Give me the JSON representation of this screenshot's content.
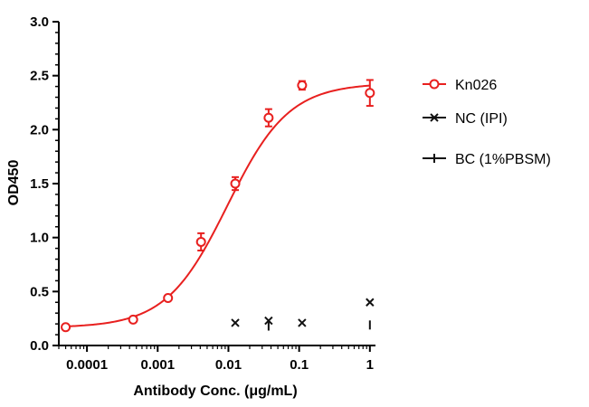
{
  "chart_data": {
    "type": "scatter",
    "xlabel": "Antibody Conc. (μg/mL)",
    "ylabel": "OD450",
    "x_scale": "log",
    "xlim": [
      4e-05,
      1.2
    ],
    "ylim": [
      0,
      3.0
    ],
    "x_ticks": [
      {
        "value": 0.0001,
        "label": "0.0001"
      },
      {
        "value": 0.001,
        "label": "0.001"
      },
      {
        "value": 0.01,
        "label": "0.01"
      },
      {
        "value": 0.1,
        "label": "0.1"
      },
      {
        "value": 1,
        "label": "1"
      }
    ],
    "y_ticks": [
      {
        "value": 0.0,
        "label": "0.0"
      },
      {
        "value": 0.5,
        "label": "0.5"
      },
      {
        "value": 1.0,
        "label": "1.0"
      },
      {
        "value": 1.5,
        "label": "1.5"
      },
      {
        "value": 2.0,
        "label": "2.0"
      },
      {
        "value": 2.5,
        "label": "2.5"
      },
      {
        "value": 3.0,
        "label": "3.0"
      }
    ],
    "legend_position": "right",
    "grid": false,
    "series": [
      {
        "name": "Kn026",
        "marker": "circle",
        "color": "#e8201f",
        "fit_curve": {
          "bottom": 0.165,
          "top": 2.43,
          "ec50": 0.0097,
          "hill": 1.0
        },
        "points": [
          {
            "x": 5e-05,
            "y": 0.17,
            "err": 0.01
          },
          {
            "x": 0.00045,
            "y": 0.24,
            "err": 0.015
          },
          {
            "x": 0.0014,
            "y": 0.44,
            "err": 0.02
          },
          {
            "x": 0.0041,
            "y": 0.96,
            "err": 0.08
          },
          {
            "x": 0.0125,
            "y": 1.5,
            "err": 0.06
          },
          {
            "x": 0.037,
            "y": 2.11,
            "err": 0.08
          },
          {
            "x": 0.11,
            "y": 2.41,
            "err": 0.04
          },
          {
            "x": 1.0,
            "y": 2.34,
            "err": 0.12
          }
        ]
      },
      {
        "name": "NC (IPI)",
        "marker": "x",
        "color": "#111111",
        "points": [
          {
            "x": 0.0125,
            "y": 0.21
          },
          {
            "x": 0.037,
            "y": 0.23
          },
          {
            "x": 0.11,
            "y": 0.21
          },
          {
            "x": 1.0,
            "y": 0.4
          }
        ]
      },
      {
        "name": "BC (1%PBSM)",
        "marker": "plus",
        "color": "#111111",
        "points": [
          {
            "x": 0.037,
            "y": 0.18
          },
          {
            "x": 1.0,
            "y": 0.19
          }
        ]
      }
    ]
  }
}
